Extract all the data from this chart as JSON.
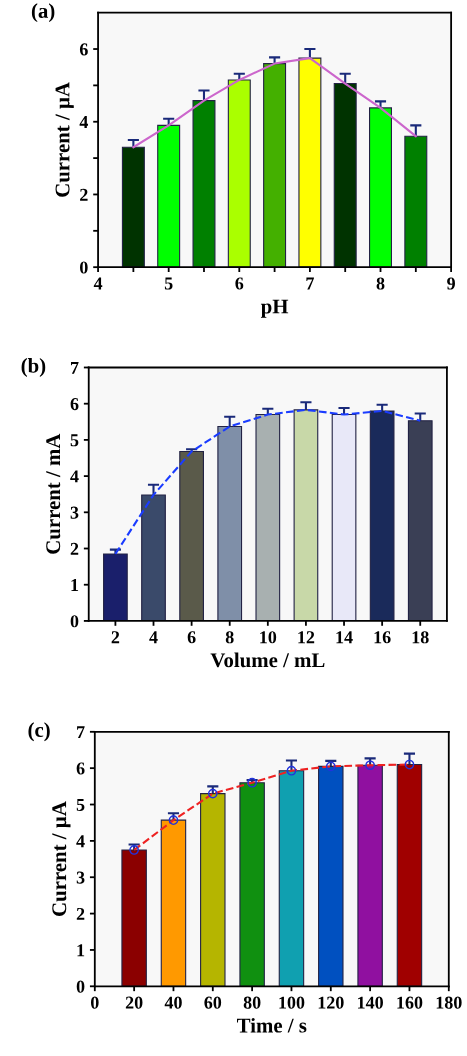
{
  "chart_data": [
    {
      "type": "bar",
      "xlabel": "pH",
      "ylabel": "Current / µA",
      "annotations": [
        "(a)"
      ],
      "x": [
        4.5,
        5,
        5.5,
        6,
        6.5,
        7,
        7.5,
        8,
        8.5
      ],
      "xlim": [
        4,
        9
      ],
      "xticks": [
        4,
        {
          "value": 4.5,
          "label": null
        },
        5,
        {
          "value": 5.5,
          "label": null
        },
        6,
        {
          "value": 6.5,
          "label": null
        },
        7,
        {
          "value": 7.5,
          "label": null
        },
        8,
        {
          "value": 8.5,
          "label": null
        },
        9
      ],
      "ylim": [
        0,
        7
      ],
      "yticks": [
        0,
        {
          "value": 1,
          "label": null
        },
        2,
        {
          "value": 3,
          "label": null
        },
        4,
        {
          "value": 5,
          "label": null
        },
        6
      ],
      "grid": false,
      "series": [
        {
          "colors": [
            "#003300",
            "#00ff00",
            "#008000",
            "#aaff00",
            "#44b000",
            "#ffff00",
            "#003300",
            "#00ff00",
            "#008000"
          ],
          "values": [
            3.3,
            3.9,
            4.58,
            5.15,
            5.6,
            5.75,
            5.05,
            4.38,
            3.6
          ],
          "errors": [
            0.2,
            0.18,
            0.28,
            0.17,
            0.17,
            0.25,
            0.27,
            0.18,
            0.3
          ]
        },
        {
          "type": "line",
          "color": "#cc66cc",
          "line_style": "solid",
          "marker": "none",
          "values": [
            3.3,
            3.9,
            4.58,
            5.15,
            5.6,
            5.75,
            5.05,
            4.38,
            3.6
          ]
        }
      ]
    },
    {
      "type": "bar",
      "xlabel": "Volume / mL",
      "ylabel": "Current / mA",
      "annotations": [
        "(b)"
      ],
      "categories": [
        "2",
        "4",
        "6",
        "8",
        "10",
        "12",
        "14",
        "16",
        "18"
      ],
      "ylim": [
        0,
        7
      ],
      "yticks": [
        0,
        1,
        2,
        3,
        4,
        5,
        6,
        7
      ],
      "grid": false,
      "series": [
        {
          "colors": [
            "#1a1f6b",
            "#3a4a6a",
            "#5a5a4a",
            "#7f8fa8",
            "#a8b0b0",
            "#c8d8a8",
            "#e8e8f8",
            "#1a2a5a",
            "#3a3f55"
          ],
          "values": [
            1.85,
            3.48,
            4.68,
            5.37,
            5.7,
            5.83,
            5.7,
            5.8,
            5.53
          ],
          "errors": [
            0.12,
            0.28,
            0.06,
            0.27,
            0.16,
            0.21,
            0.18,
            0.17,
            0.2
          ]
        },
        {
          "type": "line",
          "color": "#1a3cff",
          "line_style": "dashed",
          "marker": "none",
          "values": [
            1.85,
            3.48,
            4.68,
            5.37,
            5.7,
            5.83,
            5.7,
            5.8,
            5.53
          ]
        }
      ]
    },
    {
      "type": "bar",
      "xlabel": "Time / s",
      "ylabel": "Current / µA",
      "annotations": [
        "(c)"
      ],
      "x": [
        20,
        40,
        60,
        80,
        100,
        120,
        140,
        160
      ],
      "xlim": [
        0,
        180
      ],
      "xticks": [
        0,
        20,
        40,
        60,
        80,
        100,
        120,
        140,
        160,
        180
      ],
      "ylim": [
        0,
        7
      ],
      "yticks": [
        0,
        1,
        2,
        3,
        4,
        5,
        6,
        7
      ],
      "grid": false,
      "series": [
        {
          "colors": [
            "#8b0000",
            "#ff9900",
            "#b5b500",
            "#109010",
            "#10a0b0",
            "#0050c0",
            "#9010a0",
            "#a00000"
          ],
          "values": [
            3.75,
            4.57,
            5.3,
            5.6,
            5.93,
            6.05,
            6.08,
            6.1
          ],
          "errors": [
            0.15,
            0.19,
            0.2,
            0.07,
            0.28,
            0.15,
            0.19,
            0.3
          ]
        },
        {
          "type": "line",
          "color": "#ee2222",
          "line_style": "dashed",
          "marker": "circle",
          "values": [
            3.75,
            4.57,
            5.3,
            5.6,
            5.93,
            6.05,
            6.08,
            6.1
          ]
        }
      ]
    }
  ]
}
